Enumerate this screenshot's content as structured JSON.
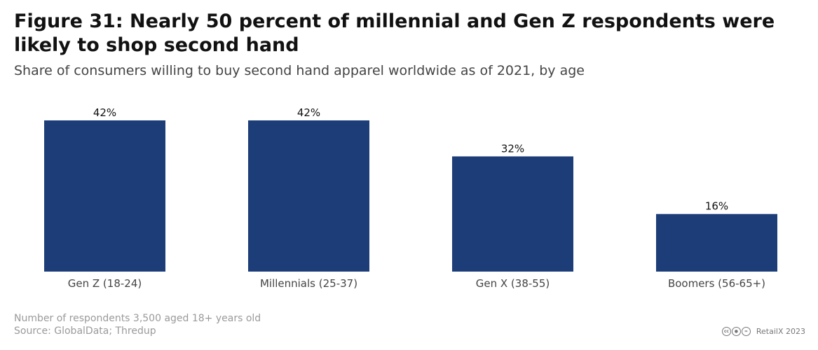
{
  "header": {
    "title": "Figure 31: Nearly 50 percent of millennial and Gen Z respondents were likely to shop second hand",
    "subtitle": "Share of consumers willing to buy second hand apparel worldwide as of 2021, by age"
  },
  "chart_data": {
    "type": "bar",
    "title": "Figure 31: Nearly 50 percent of millennial and Gen Z respondents were likely to shop second hand",
    "subtitle": "Share of consumers willing to buy second hand apparel worldwide as of 2021, by age",
    "categories": [
      "Gen Z (18-24)",
      "Millennials (25-37)",
      "Gen X (38-55)",
      "Boomers (56-65+)"
    ],
    "values": [
      42,
      42,
      32,
      16
    ],
    "value_labels": [
      "42%",
      "42%",
      "32%",
      "16%"
    ],
    "xlabel": "",
    "ylabel": "",
    "ylim": [
      0,
      42
    ],
    "grid": false,
    "legend": "none",
    "bar_color": "#1c3d78"
  },
  "footer": {
    "note": "Number of respondents 3,500 aged 18+ years old",
    "source": "Source: GlobalData; Thredup",
    "brand": "RetailX 2023",
    "icons": [
      "cc-icon",
      "by-icon",
      "nd-icon"
    ]
  }
}
